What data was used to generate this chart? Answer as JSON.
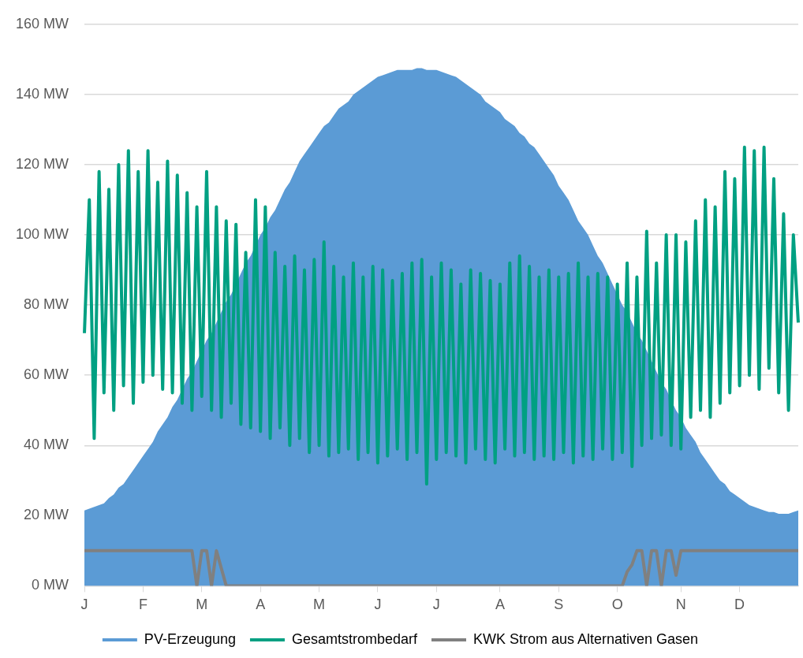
{
  "chart_data": {
    "type": "line",
    "categories": [
      "J",
      null,
      null,
      null,
      null,
      null,
      null,
      null,
      null,
      null,
      null,
      null,
      "F",
      null,
      null,
      null,
      null,
      null,
      null,
      null,
      null,
      null,
      null,
      null,
      "M",
      null,
      null,
      null,
      null,
      null,
      null,
      null,
      null,
      null,
      null,
      null,
      "A",
      null,
      null,
      null,
      null,
      null,
      null,
      null,
      null,
      null,
      null,
      null,
      "M",
      null,
      null,
      null,
      null,
      null,
      null,
      null,
      null,
      null,
      null,
      null,
      "J",
      null,
      null,
      null,
      null,
      null,
      null,
      null,
      null,
      null,
      null,
      null,
      "J",
      null,
      null,
      null,
      null,
      null,
      null,
      null,
      null,
      null,
      null,
      null,
      null,
      "A",
      null,
      null,
      null,
      null,
      null,
      null,
      null,
      null,
      null,
      null,
      null,
      "S",
      null,
      null,
      null,
      null,
      null,
      null,
      null,
      null,
      null,
      null,
      null,
      "O",
      null,
      null,
      null,
      null,
      null,
      null,
      null,
      null,
      null,
      null,
      null,
      null,
      "N",
      null,
      null,
      null,
      null,
      null,
      null,
      null,
      null,
      null,
      null,
      null,
      "D",
      null,
      null,
      null,
      null,
      null,
      null,
      null,
      null,
      null,
      null,
      null,
      null
    ],
    "ylim": [
      0,
      160
    ],
    "yticks": [
      {
        "value": 0,
        "label": "0 MW"
      },
      {
        "value": 20,
        "label": "20 MW"
      },
      {
        "value": 40,
        "label": "40 MW"
      },
      {
        "value": 60,
        "label": "60 MW"
      },
      {
        "value": 80,
        "label": "80 MW"
      },
      {
        "value": 100,
        "label": "100 MW"
      },
      {
        "value": 120,
        "label": "120 MW"
      },
      {
        "value": 140,
        "label": "140 MW"
      },
      {
        "value": 160,
        "label": "160 MW"
      }
    ],
    "grid": "y",
    "legend": "bottom",
    "line_style": "solid",
    "series": [
      {
        "name": "PV-Erzeugung",
        "type": "area",
        "color": "#5b9bd5",
        "values": [
          21.5,
          22,
          22.5,
          23,
          23.5,
          25,
          26,
          28,
          29,
          31,
          33,
          35,
          37,
          39,
          41,
          44,
          46,
          48,
          51,
          53,
          56,
          59,
          61,
          64,
          67,
          70,
          72,
          75,
          78,
          81,
          83,
          86,
          89,
          92,
          94,
          97,
          100,
          102,
          105,
          107,
          110,
          113,
          115,
          118,
          121,
          123,
          125,
          127,
          129,
          131,
          132,
          134,
          136,
          137,
          138,
          140,
          141,
          142,
          143,
          144,
          145,
          145.5,
          146,
          146.5,
          147,
          147,
          147,
          147,
          147.5,
          147.5,
          147,
          147,
          147,
          146.5,
          146,
          145.5,
          145,
          144,
          143,
          142,
          141,
          140,
          138,
          137,
          136,
          135,
          133,
          132,
          131,
          129,
          128,
          126,
          125,
          123,
          121,
          119,
          117,
          114,
          112,
          110,
          107,
          104,
          102,
          100,
          97,
          94,
          92,
          89,
          86,
          83,
          80,
          78,
          75,
          72,
          70,
          67,
          64,
          61,
          58,
          56,
          53,
          50,
          48,
          45,
          43,
          41,
          38,
          36,
          34,
          32,
          30,
          29,
          27,
          26,
          25,
          24,
          23,
          22.5,
          22,
          21.5,
          21,
          21,
          20.5,
          20.5,
          20.5,
          21,
          21.5
        ]
      },
      {
        "name": "Gesamtstrombedarf",
        "color": "#00a082",
        "values": [
          72,
          110,
          42,
          118,
          55,
          113,
          50,
          120,
          57,
          124,
          52,
          118,
          58,
          124,
          60,
          115,
          56,
          121,
          55,
          117,
          52,
          112,
          50,
          108,
          54,
          118,
          50,
          108,
          48,
          104,
          52,
          103,
          46,
          95,
          45,
          110,
          44,
          108,
          42,
          95,
          45,
          91,
          40,
          94,
          42,
          90,
          38,
          93,
          40,
          98,
          37,
          91,
          38,
          88,
          39,
          92,
          36,
          88,
          38,
          91,
          35,
          90,
          37,
          87,
          39,
          89,
          36,
          92,
          38,
          93,
          29,
          88,
          36,
          92,
          38,
          90,
          37,
          86,
          35,
          90,
          39,
          89,
          36,
          87,
          35,
          86,
          39,
          92,
          37,
          94,
          38,
          91,
          36,
          88,
          37,
          90,
          36,
          88,
          38,
          89,
          35,
          92,
          37,
          88,
          36,
          89,
          39,
          88,
          36,
          86,
          38,
          92,
          34,
          88,
          40,
          101,
          42,
          92,
          43,
          100,
          40,
          100,
          39,
          98,
          48,
          104,
          50,
          110,
          48,
          108,
          52,
          118,
          55,
          116,
          57,
          125,
          60,
          124,
          56,
          125,
          62,
          116,
          55,
          106,
          50,
          100,
          75
        ]
      },
      {
        "name": "KWK Strom aus Alternativen Gasen",
        "color": "#808080",
        "values": [
          10,
          10,
          10,
          10,
          10,
          10,
          10,
          10,
          10,
          10,
          10,
          10,
          10,
          10,
          10,
          10,
          10,
          10,
          10,
          10,
          10,
          10,
          10,
          0,
          10,
          10,
          0,
          10,
          5,
          0,
          0,
          0,
          0,
          0,
          0,
          0,
          0,
          0,
          0,
          0,
          0,
          0,
          0,
          0,
          0,
          0,
          0,
          0,
          0,
          0,
          0,
          0,
          0,
          0,
          0,
          0,
          0,
          0,
          0,
          0,
          0,
          0,
          0,
          0,
          0,
          0,
          0,
          0,
          0,
          0,
          0,
          0,
          0,
          0,
          0,
          0,
          0,
          0,
          0,
          0,
          0,
          0,
          0,
          0,
          0,
          0,
          0,
          0,
          0,
          0,
          0,
          0,
          0,
          0,
          0,
          0,
          0,
          0,
          0,
          0,
          0,
          0,
          0,
          0,
          0,
          0,
          0,
          0,
          0,
          0,
          0,
          4,
          6,
          10,
          10,
          0,
          10,
          10,
          0,
          10,
          10,
          3,
          10,
          10,
          10,
          10,
          10,
          10,
          10,
          10,
          10,
          10,
          10,
          10,
          10,
          10,
          10,
          10,
          10,
          10,
          10,
          10,
          10,
          10,
          10,
          10,
          10
        ]
      }
    ]
  }
}
